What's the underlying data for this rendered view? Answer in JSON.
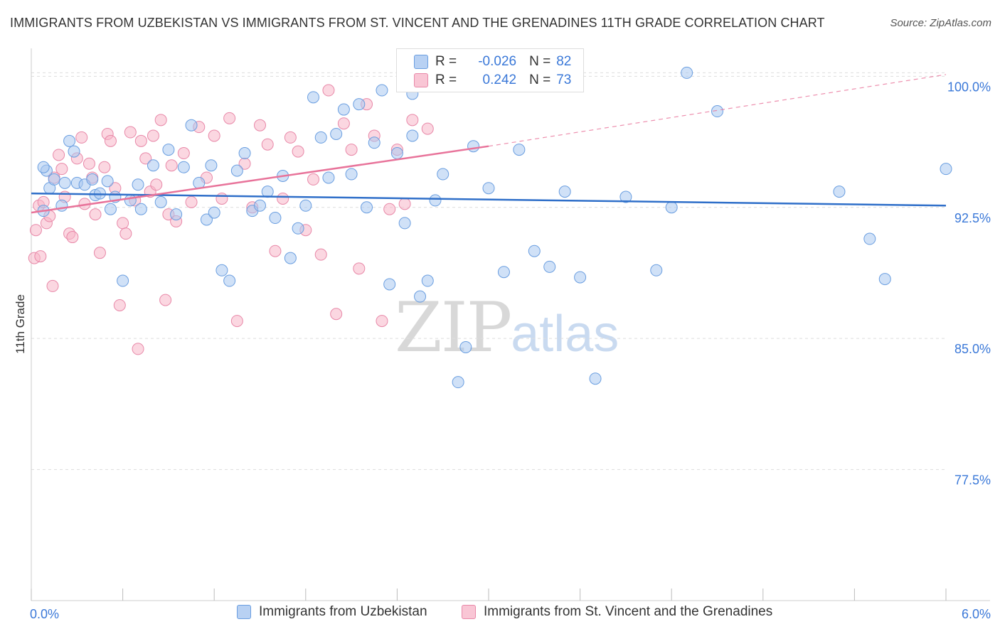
{
  "title": "IMMIGRANTS FROM UZBEKISTAN VS IMMIGRANTS FROM ST. VINCENT AND THE GRENADINES 11TH GRADE CORRELATION CHART",
  "source": "Source: ZipAtlas.com",
  "watermark": {
    "zip": "ZIP",
    "atlas": "atlas"
  },
  "colors": {
    "blue_fill": "#a9c8f0",
    "blue_stroke": "#6a9ee0",
    "blue_line": "#2f6fc9",
    "pink_fill": "#f7b7c9",
    "pink_stroke": "#e888a8",
    "pink_line": "#e8739a",
    "grid": "#dddddd",
    "tick_text": "#3a78d8"
  },
  "stats": {
    "rows": [
      {
        "r_label": "R =",
        "r_value": "-0.026",
        "n_label": "N =",
        "n_value": "82",
        "series": "blue"
      },
      {
        "r_label": "R =",
        "r_value": " 0.242",
        "n_label": "N =",
        "n_value": "73",
        "series": "pink"
      }
    ]
  },
  "legend": {
    "blue": "Immigrants from Uzbekistan",
    "pink": "Immigrants from St. Vincent and the Grenadines"
  },
  "chart_data": {
    "type": "scatter",
    "title": "IMMIGRANTS FROM UZBEKISTAN VS IMMIGRANTS FROM ST. VINCENT AND THE GRENADINES 11TH GRADE CORRELATION CHART",
    "xlabel": "",
    "ylabel": "11th Grade",
    "xlim": [
      0,
      6
    ],
    "ylim": [
      70,
      101.6
    ],
    "x_ticks": [
      0.0,
      6.0
    ],
    "x_tick_labels": [
      "0.0%",
      "6.0%"
    ],
    "y_ticks": [
      77.5,
      85.0,
      92.5,
      100.0
    ],
    "y_tick_labels": [
      "77.5%",
      "85.0%",
      "92.5%",
      "100.0%"
    ],
    "grid": true,
    "series": [
      {
        "name": "Immigrants from Uzbekistan",
        "color": "blue",
        "trend": {
          "x": [
            0.0,
            6.0
          ],
          "y": [
            93.3,
            92.6
          ],
          "dashed_to": null
        },
        "points": [
          [
            0.08,
            92.3
          ],
          [
            0.1,
            94.6
          ],
          [
            0.08,
            94.8
          ],
          [
            0.12,
            93.6
          ],
          [
            0.15,
            94.1
          ],
          [
            0.2,
            92.6
          ],
          [
            0.22,
            93.9
          ],
          [
            0.25,
            96.3
          ],
          [
            0.28,
            95.7
          ],
          [
            0.3,
            93.9
          ],
          [
            0.35,
            93.8
          ],
          [
            0.4,
            94.1
          ],
          [
            0.42,
            93.2
          ],
          [
            0.45,
            93.3
          ],
          [
            0.5,
            94.0
          ],
          [
            0.52,
            92.4
          ],
          [
            0.55,
            93.1
          ],
          [
            0.6,
            88.3
          ],
          [
            0.65,
            92.9
          ],
          [
            0.7,
            93.8
          ],
          [
            0.72,
            92.4
          ],
          [
            0.8,
            94.9
          ],
          [
            0.85,
            92.8
          ],
          [
            0.9,
            95.8
          ],
          [
            0.95,
            92.1
          ],
          [
            1.0,
            94.8
          ],
          [
            1.05,
            97.2
          ],
          [
            1.1,
            93.9
          ],
          [
            1.15,
            91.8
          ],
          [
            1.18,
            94.9
          ],
          [
            1.2,
            92.2
          ],
          [
            1.25,
            88.9
          ],
          [
            1.3,
            88.3
          ],
          [
            1.35,
            94.6
          ],
          [
            1.4,
            95.6
          ],
          [
            1.45,
            92.3
          ],
          [
            1.5,
            92.6
          ],
          [
            1.55,
            93.4
          ],
          [
            1.6,
            91.9
          ],
          [
            1.65,
            94.3
          ],
          [
            1.7,
            89.6
          ],
          [
            1.75,
            91.3
          ],
          [
            1.8,
            92.6
          ],
          [
            1.85,
            98.8
          ],
          [
            1.9,
            96.5
          ],
          [
            1.95,
            94.2
          ],
          [
            2.0,
            96.7
          ],
          [
            2.05,
            98.1
          ],
          [
            2.1,
            94.4
          ],
          [
            2.15,
            98.4
          ],
          [
            2.2,
            92.5
          ],
          [
            2.25,
            96.2
          ],
          [
            2.3,
            99.2
          ],
          [
            2.35,
            88.1
          ],
          [
            2.4,
            95.6
          ],
          [
            2.45,
            91.6
          ],
          [
            2.5,
            96.6
          ],
          [
            2.55,
            87.4
          ],
          [
            2.6,
            88.3
          ],
          [
            2.65,
            92.9
          ],
          [
            2.7,
            94.4
          ],
          [
            2.8,
            82.5
          ],
          [
            2.85,
            84.5
          ],
          [
            2.9,
            96.0
          ],
          [
            3.0,
            93.6
          ],
          [
            3.1,
            88.8
          ],
          [
            3.2,
            95.8
          ],
          [
            3.3,
            90.0
          ],
          [
            3.4,
            89.1
          ],
          [
            3.5,
            93.4
          ],
          [
            3.6,
            88.5
          ],
          [
            4.3,
            100.2
          ],
          [
            4.5,
            98.0
          ],
          [
            5.3,
            93.4
          ],
          [
            5.5,
            90.7
          ],
          [
            5.6,
            88.4
          ],
          [
            6.0,
            94.7
          ],
          [
            4.2,
            92.5
          ],
          [
            3.9,
            93.1
          ],
          [
            4.1,
            88.9
          ],
          [
            3.7,
            82.7
          ],
          [
            2.5,
            99.0
          ]
        ]
      },
      {
        "name": "Immigrants from St. Vincent and the Grenadines",
        "color": "pink",
        "trend": {
          "x": [
            0.0,
            3.0
          ],
          "y": [
            92.2,
            96.0
          ],
          "dashed_to": [
            6.0,
            100.1
          ]
        },
        "points": [
          [
            0.02,
            89.6
          ],
          [
            0.03,
            91.2
          ],
          [
            0.05,
            92.6
          ],
          [
            0.06,
            89.7
          ],
          [
            0.08,
            92.8
          ],
          [
            0.1,
            91.6
          ],
          [
            0.12,
            92.0
          ],
          [
            0.14,
            88.0
          ],
          [
            0.15,
            94.2
          ],
          [
            0.18,
            95.5
          ],
          [
            0.2,
            94.7
          ],
          [
            0.22,
            93.1
          ],
          [
            0.25,
            91.0
          ],
          [
            0.27,
            90.8
          ],
          [
            0.3,
            95.3
          ],
          [
            0.33,
            96.5
          ],
          [
            0.35,
            92.7
          ],
          [
            0.38,
            95.0
          ],
          [
            0.4,
            94.2
          ],
          [
            0.42,
            92.1
          ],
          [
            0.45,
            89.9
          ],
          [
            0.48,
            94.8
          ],
          [
            0.5,
            96.7
          ],
          [
            0.52,
            96.3
          ],
          [
            0.55,
            93.6
          ],
          [
            0.58,
            86.9
          ],
          [
            0.6,
            91.6
          ],
          [
            0.62,
            91.0
          ],
          [
            0.65,
            96.8
          ],
          [
            0.68,
            92.9
          ],
          [
            0.7,
            84.4
          ],
          [
            0.72,
            96.3
          ],
          [
            0.75,
            95.3
          ],
          [
            0.78,
            93.4
          ],
          [
            0.8,
            96.6
          ],
          [
            0.82,
            93.8
          ],
          [
            0.85,
            97.5
          ],
          [
            0.88,
            87.2
          ],
          [
            0.9,
            92.1
          ],
          [
            0.92,
            94.9
          ],
          [
            0.95,
            91.7
          ],
          [
            1.0,
            95.6
          ],
          [
            1.05,
            92.8
          ],
          [
            1.1,
            97.1
          ],
          [
            1.15,
            94.2
          ],
          [
            1.2,
            96.6
          ],
          [
            1.25,
            93.0
          ],
          [
            1.3,
            97.6
          ],
          [
            1.35,
            86.0
          ],
          [
            1.4,
            95.0
          ],
          [
            1.45,
            92.5
          ],
          [
            1.5,
            97.2
          ],
          [
            1.55,
            96.1
          ],
          [
            1.6,
            90.0
          ],
          [
            1.65,
            93.0
          ],
          [
            1.7,
            96.5
          ],
          [
            1.75,
            95.7
          ],
          [
            1.8,
            91.2
          ],
          [
            1.85,
            94.1
          ],
          [
            1.9,
            89.8
          ],
          [
            1.95,
            99.2
          ],
          [
            2.0,
            86.4
          ],
          [
            2.05,
            97.3
          ],
          [
            2.1,
            95.8
          ],
          [
            2.15,
            89.0
          ],
          [
            2.2,
            98.4
          ],
          [
            2.25,
            96.6
          ],
          [
            2.3,
            86.0
          ],
          [
            2.35,
            92.4
          ],
          [
            2.4,
            95.8
          ],
          [
            2.45,
            92.7
          ],
          [
            2.5,
            97.5
          ],
          [
            2.6,
            97.0
          ]
        ]
      }
    ]
  }
}
